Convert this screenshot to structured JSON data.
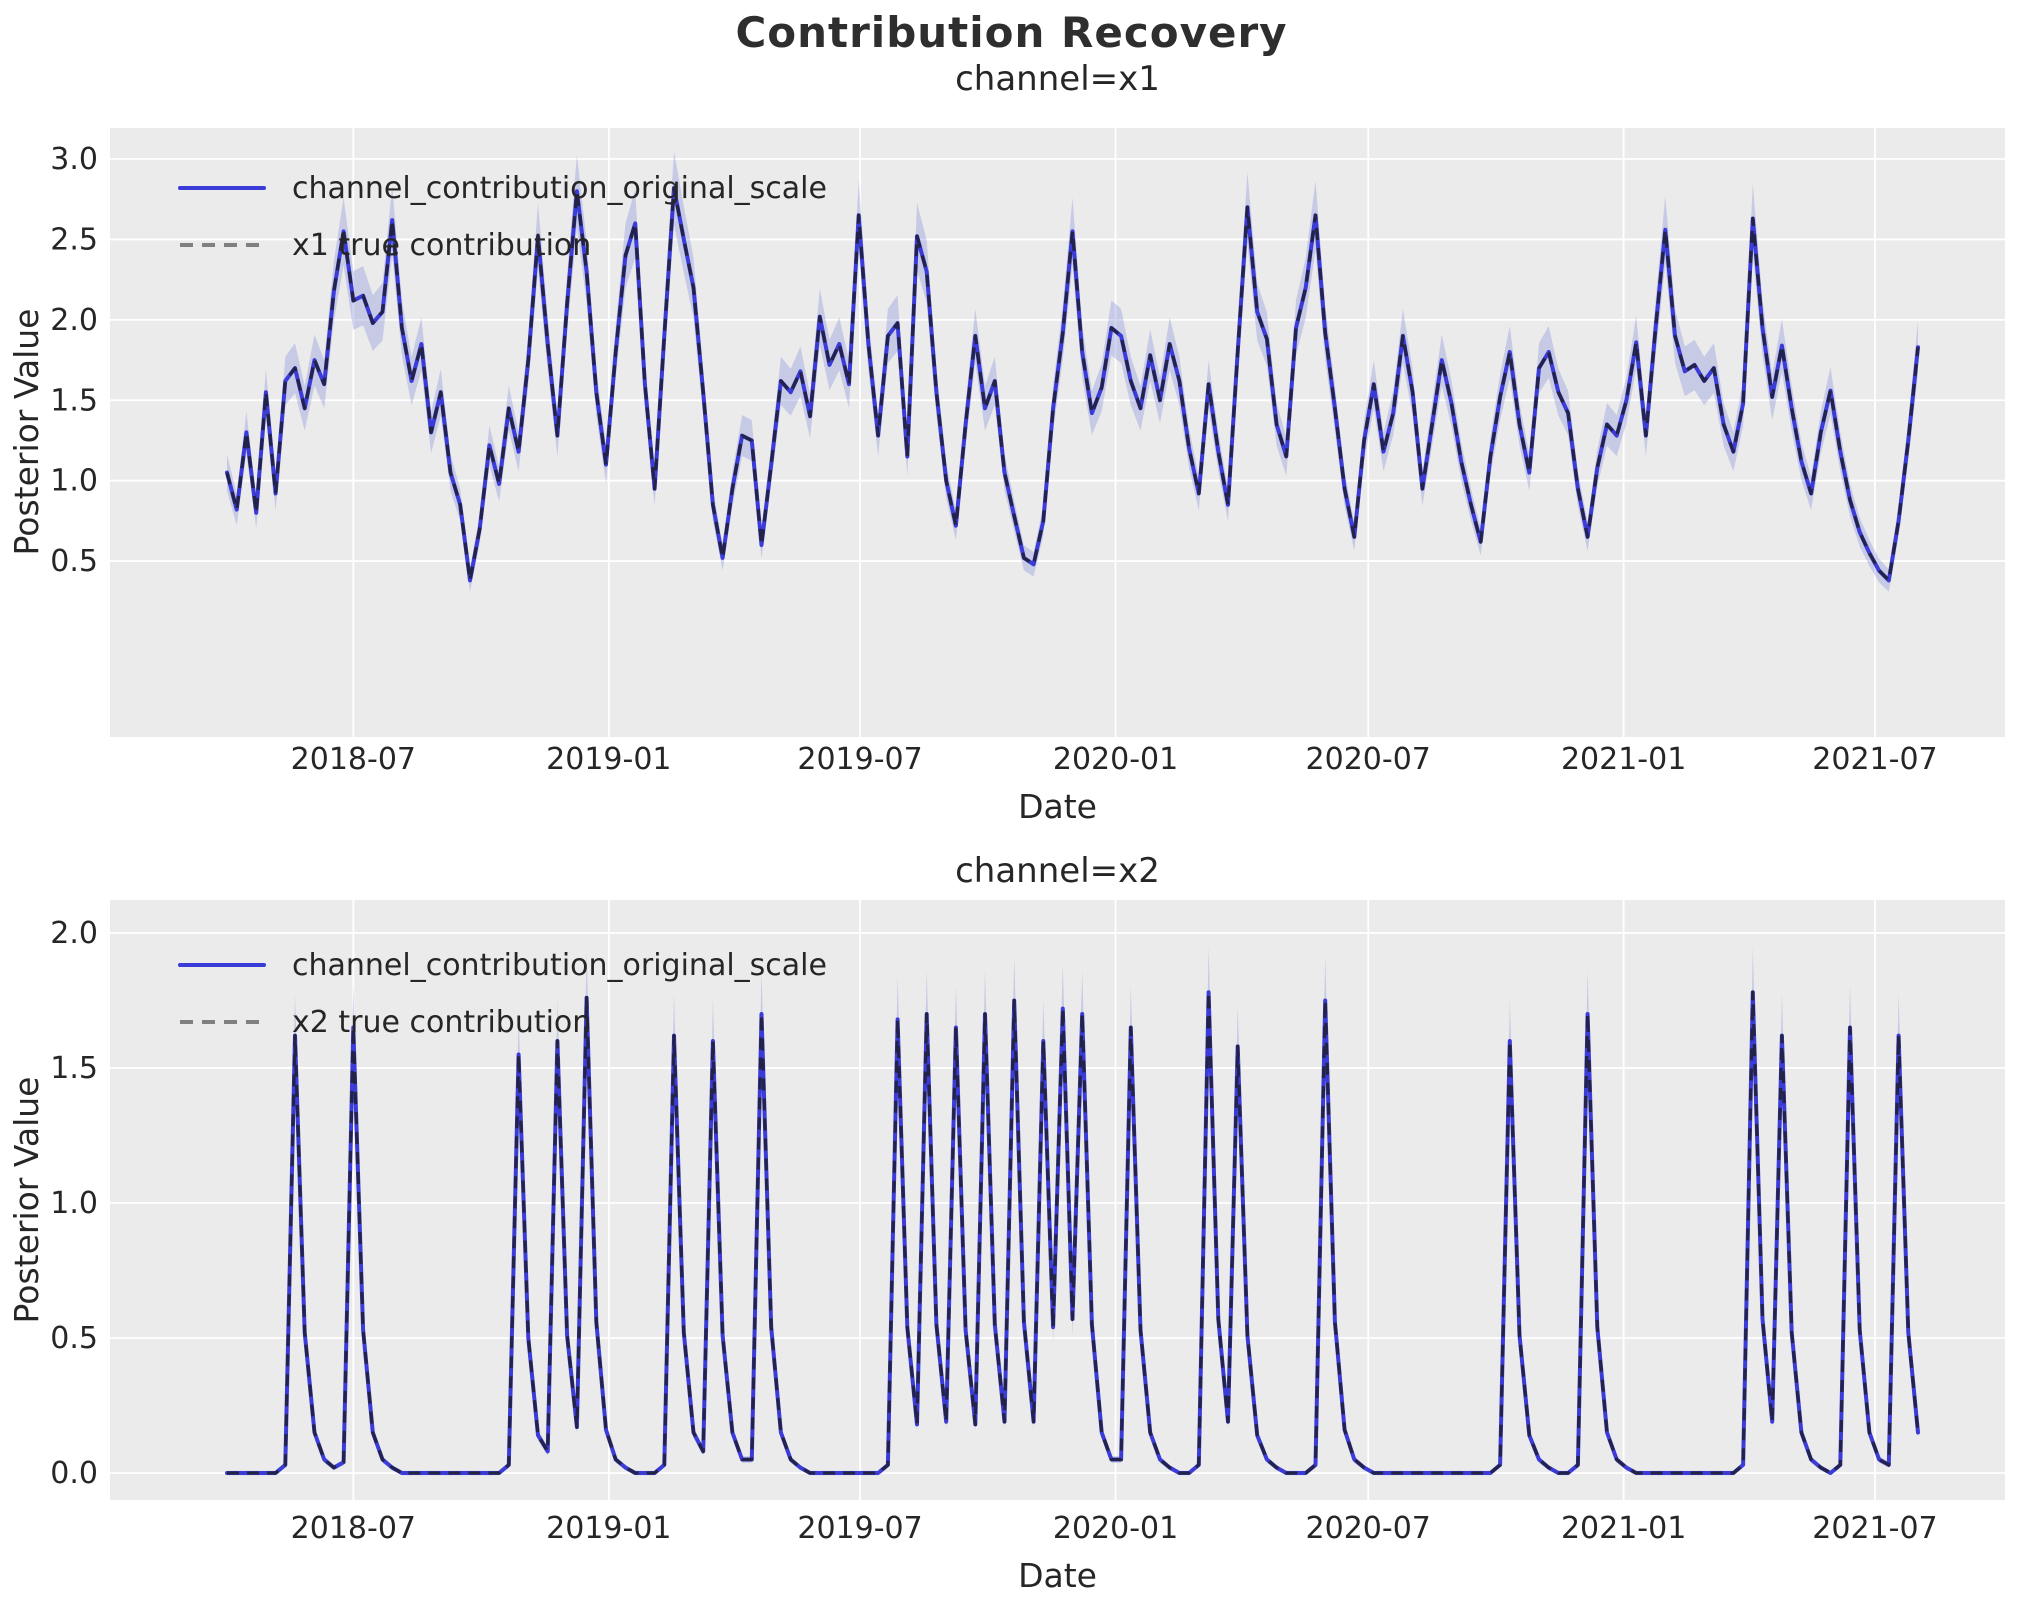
{
  "figure": {
    "title": "Contribution Recovery",
    "background": "#ffffff"
  },
  "palette": {
    "axes_background": "#ebebeb",
    "grid": "#ffffff",
    "posterior_line": "#3b3bd8",
    "true_line_overlay": "#21213a",
    "true_line_legend": "#808080",
    "hdi_band": "#8f96dd",
    "text": "#262626",
    "title_text": "#2e2e2e"
  },
  "chart_data": [
    {
      "type": "line",
      "title": "channel=x1",
      "xlabel": "Date",
      "ylabel": "Posterior Value",
      "legend": [
        "channel_contribution_original_scale",
        "x1 true contribution"
      ],
      "legend_position": "upper left",
      "grid": true,
      "start_date": "2018-04-01",
      "freq_days": 7,
      "n_points": 175,
      "ylim": [
        -0.594,
        3.193
      ],
      "y_ticks": [
        {
          "v": 3.0,
          "label": "3.0"
        },
        {
          "v": 2.5,
          "label": "2.5"
        },
        {
          "v": 2.0,
          "label": "2.0"
        },
        {
          "v": 1.5,
          "label": "1.5"
        },
        {
          "v": 1.0,
          "label": "1.0"
        },
        {
          "v": 0.5,
          "label": "0.5"
        }
      ],
      "x_ticks": [
        {
          "week": 13.0,
          "label": "2018-07"
        },
        {
          "week": 39.29,
          "label": "2019-01"
        },
        {
          "week": 65.14,
          "label": "2019-07"
        },
        {
          "week": 91.43,
          "label": "2020-01"
        },
        {
          "week": 117.43,
          "label": "2020-07"
        },
        {
          "week": 143.71,
          "label": "2021-01"
        },
        {
          "week": 169.57,
          "label": "2021-07"
        }
      ],
      "band": {
        "abs": 0.045,
        "rel": 0.065,
        "note": "approximate HDI half-width = abs + rel*value"
      },
      "series_note": "posterior and true contribution are visually identical; both drawn from values[]",
      "values": [
        1.05,
        0.82,
        1.3,
        0.8,
        1.55,
        0.92,
        1.62,
        1.7,
        1.45,
        1.75,
        1.6,
        2.18,
        2.55,
        2.12,
        2.15,
        1.98,
        2.05,
        2.62,
        1.95,
        1.62,
        1.85,
        1.3,
        1.55,
        1.05,
        0.85,
        0.38,
        0.7,
        1.22,
        0.98,
        1.45,
        1.18,
        1.75,
        2.52,
        1.85,
        1.28,
        2.1,
        2.8,
        2.3,
        1.55,
        1.1,
        1.8,
        2.4,
        2.6,
        1.6,
        0.95,
        1.9,
        2.82,
        2.5,
        2.2,
        1.55,
        0.85,
        0.52,
        0.95,
        1.28,
        1.25,
        0.6,
        1.1,
        1.62,
        1.55,
        1.68,
        1.4,
        2.02,
        1.72,
        1.85,
        1.6,
        2.65,
        1.85,
        1.28,
        1.9,
        1.98,
        1.15,
        2.52,
        2.3,
        1.55,
        1.0,
        0.72,
        1.35,
        1.9,
        1.45,
        1.62,
        1.05,
        0.78,
        0.52,
        0.48,
        0.75,
        1.45,
        1.92,
        2.55,
        1.8,
        1.42,
        1.58,
        1.95,
        1.9,
        1.62,
        1.45,
        1.78,
        1.5,
        1.85,
        1.62,
        1.2,
        0.92,
        1.6,
        1.18,
        0.85,
        1.8,
        2.7,
        2.05,
        1.88,
        1.35,
        1.15,
        1.95,
        2.2,
        2.65,
        1.92,
        1.45,
        0.95,
        0.65,
        1.25,
        1.6,
        1.18,
        1.42,
        1.9,
        1.55,
        0.95,
        1.35,
        1.75,
        1.48,
        1.12,
        0.85,
        0.62,
        1.15,
        1.52,
        1.8,
        1.35,
        1.05,
        1.7,
        1.8,
        1.55,
        1.42,
        0.95,
        0.65,
        1.08,
        1.35,
        1.28,
        1.5,
        1.86,
        1.28,
        1.95,
        2.56,
        1.9,
        1.68,
        1.72,
        1.62,
        1.7,
        1.35,
        1.18,
        1.48,
        2.63,
        1.95,
        1.52,
        1.84,
        1.45,
        1.12,
        0.92,
        1.3,
        1.56,
        1.18,
        0.88,
        0.68,
        0.55,
        0.44,
        0.38,
        0.75,
        1.25,
        1.83
      ]
    },
    {
      "type": "line",
      "title": "channel=x2",
      "xlabel": "Date",
      "ylabel": "Posterior Value",
      "legend": [
        "channel_contribution_original_scale",
        "x2 true contribution"
      ],
      "legend_position": "upper left",
      "grid": true,
      "start_date": "2018-04-01",
      "freq_days": 7,
      "n_points": 175,
      "ylim": [
        -0.1,
        2.122
      ],
      "y_ticks": [
        {
          "v": 2.0,
          "label": "2.0"
        },
        {
          "v": 1.5,
          "label": "1.5"
        },
        {
          "v": 1.0,
          "label": "1.0"
        },
        {
          "v": 0.5,
          "label": "0.5"
        },
        {
          "v": 0.0,
          "label": "0.0"
        }
      ],
      "x_ticks": [
        {
          "week": 13.0,
          "label": "2018-07"
        },
        {
          "week": 39.29,
          "label": "2019-01"
        },
        {
          "week": 65.14,
          "label": "2019-07"
        },
        {
          "week": 91.43,
          "label": "2020-01"
        },
        {
          "week": 117.43,
          "label": "2020-07"
        },
        {
          "week": 143.71,
          "label": "2021-01"
        },
        {
          "week": 169.57,
          "label": "2021-07"
        }
      ],
      "band": {
        "abs": 0.008,
        "rel": 0.09,
        "note": "approximate HDI half-width = abs + rel*value"
      },
      "series_note": "posterior and true contribution are visually identical; both drawn from values[]",
      "values": [
        0,
        0,
        0,
        0,
        0,
        0,
        0.03,
        1.62,
        0.52,
        0.15,
        0.05,
        0.02,
        0.04,
        1.65,
        0.53,
        0.15,
        0.05,
        0.02,
        0,
        0,
        0,
        0,
        0,
        0,
        0,
        0,
        0,
        0,
        0,
        0.03,
        1.55,
        0.5,
        0.14,
        0.08,
        1.6,
        0.51,
        0.17,
        1.76,
        0.56,
        0.16,
        0.05,
        0.02,
        0,
        0,
        0,
        0.03,
        1.62,
        0.52,
        0.15,
        0.08,
        1.6,
        0.51,
        0.15,
        0.05,
        0.05,
        1.7,
        0.54,
        0.15,
        0.05,
        0.02,
        0,
        0,
        0,
        0,
        0,
        0,
        0,
        0,
        0.03,
        1.68,
        0.54,
        0.18,
        1.7,
        0.55,
        0.19,
        1.65,
        0.53,
        0.18,
        1.7,
        0.55,
        0.19,
        1.75,
        0.56,
        0.19,
        1.6,
        0.54,
        1.72,
        0.57,
        1.7,
        0.55,
        0.15,
        0.05,
        0.05,
        1.65,
        0.53,
        0.15,
        0.05,
        0.02,
        0,
        0,
        0.03,
        1.78,
        0.57,
        0.19,
        1.58,
        0.51,
        0.14,
        0.05,
        0.02,
        0,
        0,
        0,
        0.03,
        1.75,
        0.56,
        0.16,
        0.05,
        0.02,
        0,
        0,
        0,
        0,
        0,
        0,
        0,
        0,
        0,
        0,
        0,
        0,
        0,
        0.03,
        1.6,
        0.51,
        0.14,
        0.05,
        0.02,
        0,
        0,
        0.03,
        1.7,
        0.54,
        0.15,
        0.05,
        0.02,
        0,
        0,
        0,
        0,
        0,
        0,
        0,
        0,
        0,
        0,
        0,
        0.03,
        1.78,
        0.57,
        0.19,
        1.62,
        0.52,
        0.15,
        0.05,
        0.02,
        0,
        0.03,
        1.65,
        0.53,
        0.15,
        0.05,
        0.03,
        1.62,
        0.52,
        0.15
      ]
    }
  ]
}
